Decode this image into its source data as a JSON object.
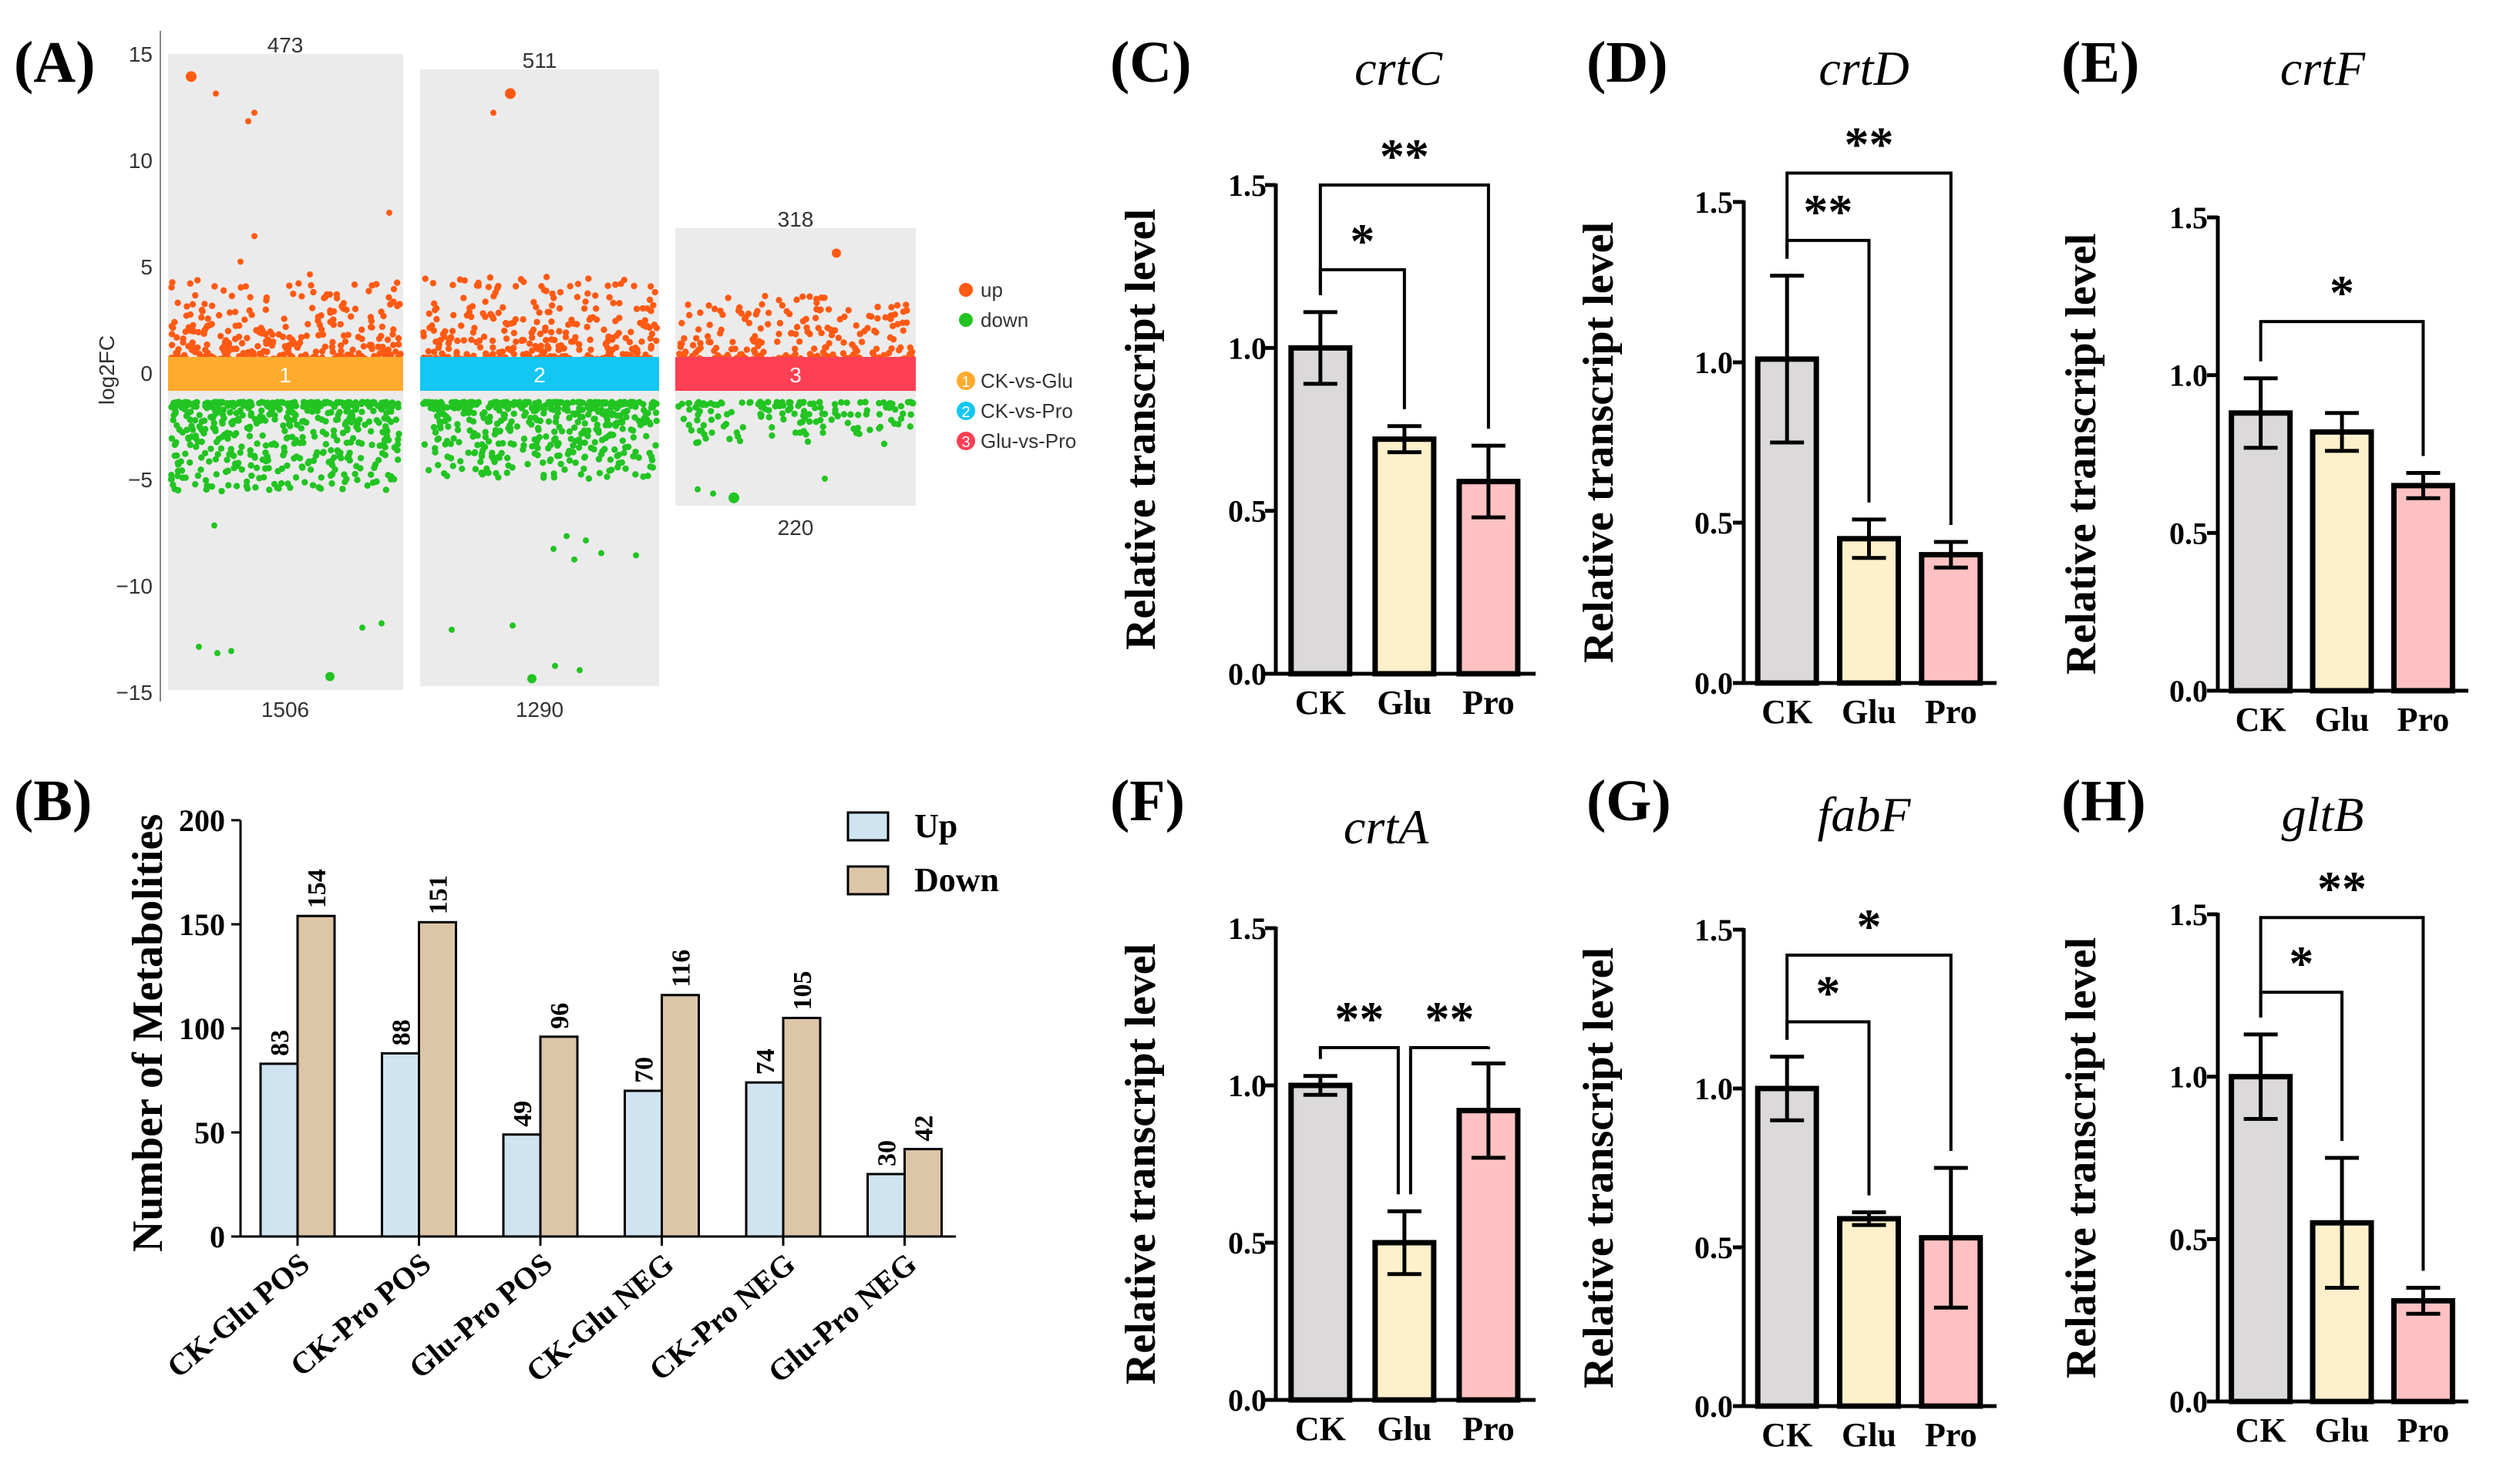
{
  "colors": {
    "up": "#ff5a14",
    "down": "#22c422",
    "panelBg": "#ebebeb",
    "g1": "#ffab2e",
    "g2": "#14c6f2",
    "g3": "#ff3f53",
    "barCK": "#dcd9da",
    "barGlu": "#fff0cc",
    "barPro": "#ffc1c1",
    "bUp": "#cfe4f0",
    "bDown": "#ddc6a8"
  },
  "panelA": {
    "label": "(A)",
    "ylabel": "log2FC",
    "yticks": [
      "15",
      "10",
      "5",
      "0",
      "−5",
      "−10",
      "−15"
    ],
    "legend": {
      "up": "up",
      "down": "down",
      "g1": "CK-vs-Glu",
      "g2": "CK-vs-Pro",
      "g3": "Glu-vs-Pro"
    },
    "groups": [
      {
        "num": "1",
        "upCount": "473",
        "downCount": "1506"
      },
      {
        "num": "2",
        "upCount": "511",
        "downCount": "1290"
      },
      {
        "num": "3",
        "upCount": "318",
        "downCount": "220"
      }
    ]
  },
  "panelB": {
    "label": "(B)",
    "ylabel": "Number of Metabolities",
    "legend": {
      "up": "Up",
      "down": "Down"
    },
    "ymax": 200,
    "yticks": [
      "0",
      "50",
      "100",
      "150",
      "200"
    ]
  },
  "chart_data": [
    {
      "type": "scatter",
      "title": "(A)",
      "ylabel": "log2FC",
      "ylim": [
        -15,
        15
      ],
      "series": [
        {
          "name": "CK-vs-Glu",
          "up": 473,
          "down": 1506
        },
        {
          "name": "CK-vs-Pro",
          "up": 511,
          "down": 1290
        },
        {
          "name": "Glu-vs-Pro",
          "up": 318,
          "down": 220
        }
      ]
    },
    {
      "type": "bar",
      "title": "(B)",
      "ylabel": "Number of Metabolities",
      "categories": [
        "CK-Glu POS",
        "CK-Pro POS",
        "Glu-Pro POS",
        "CK-Glu NEG",
        "CK-Pro NEG",
        "Glu-Pro NEG"
      ],
      "series": [
        {
          "name": "Up",
          "values": [
            83,
            88,
            49,
            70,
            74,
            30
          ]
        },
        {
          "name": "Down",
          "values": [
            154,
            151,
            96,
            116,
            105,
            42
          ]
        }
      ],
      "ylim": [
        0,
        200
      ]
    },
    {
      "type": "bar",
      "label": "(C)",
      "gene": "crtC",
      "ylabel": "Relative transcript level",
      "categories": [
        "CK",
        "Glu",
        "Pro"
      ],
      "values": [
        1.0,
        0.72,
        0.59
      ],
      "errors": [
        0.11,
        0.04,
        0.11
      ],
      "ylim": [
        0,
        1.5
      ],
      "yticks": [
        "0.0",
        "0.5",
        "1.0",
        "1.5"
      ],
      "sig": [
        {
          "from": 0,
          "to": 1,
          "text": "*"
        },
        {
          "from": 0,
          "to": 2,
          "text": "**"
        }
      ]
    },
    {
      "type": "bar",
      "label": "(D)",
      "gene": "crtD",
      "ylabel": "Relative transcript level",
      "categories": [
        "CK",
        "Glu",
        "Pro"
      ],
      "values": [
        1.01,
        0.45,
        0.4
      ],
      "errors": [
        0.26,
        0.06,
        0.04
      ],
      "ylim": [
        0,
        1.5
      ],
      "yticks": [
        "0.0",
        "0.5",
        "1.0",
        "1.5"
      ],
      "sig": [
        {
          "from": 0,
          "to": 1,
          "text": "**"
        },
        {
          "from": 0,
          "to": 2,
          "text": "**"
        }
      ]
    },
    {
      "type": "bar",
      "label": "(E)",
      "gene": "crtF",
      "ylabel": "Relative transcript level",
      "categories": [
        "CK",
        "Glu",
        "Pro"
      ],
      "values": [
        0.88,
        0.82,
        0.65
      ],
      "errors": [
        0.11,
        0.06,
        0.04
      ],
      "ylim": [
        0,
        1.5
      ],
      "yticks": [
        "0.0",
        "0.5",
        "1.0",
        "1.5"
      ],
      "sig": [
        {
          "from": 0,
          "to": 2,
          "text": "*"
        }
      ]
    },
    {
      "type": "bar",
      "label": "(F)",
      "gene": "crtA",
      "ylabel": "Relative transcript level",
      "categories": [
        "CK",
        "Glu",
        "Pro"
      ],
      "values": [
        1.0,
        0.5,
        0.92
      ],
      "errors": [
        0.03,
        0.1,
        0.15
      ],
      "ylim": [
        0,
        1.5
      ],
      "yticks": [
        "0.0",
        "0.5",
        "1.0",
        "1.5"
      ],
      "sig": [
        {
          "from": 0,
          "to": 1,
          "text": "**"
        },
        {
          "from": 1,
          "to": 2,
          "text": "**"
        }
      ]
    },
    {
      "type": "bar",
      "label": "(G)",
      "gene": "fabF",
      "ylabel": "Relative transcript level",
      "categories": [
        "CK",
        "Glu",
        "Pro"
      ],
      "values": [
        1.0,
        0.59,
        0.53
      ],
      "errors": [
        0.1,
        0.02,
        0.22
      ],
      "ylim": [
        0,
        1.5
      ],
      "yticks": [
        "0.0",
        "0.5",
        "1.0",
        "1.5"
      ],
      "sig": [
        {
          "from": 0,
          "to": 1,
          "text": "*"
        },
        {
          "from": 0,
          "to": 2,
          "text": "*"
        }
      ]
    },
    {
      "type": "bar",
      "label": "(H)",
      "gene": "gltB",
      "ylabel": "Relative transcript level",
      "categories": [
        "CK",
        "Glu",
        "Pro"
      ],
      "values": [
        1.0,
        0.55,
        0.31
      ],
      "errors": [
        0.13,
        0.2,
        0.04
      ],
      "ylim": [
        0,
        1.5
      ],
      "yticks": [
        "0.0",
        "0.5",
        "1.0",
        "1.5"
      ],
      "sig": [
        {
          "from": 0,
          "to": 1,
          "text": "*"
        },
        {
          "from": 0,
          "to": 2,
          "text": "**"
        }
      ]
    }
  ]
}
